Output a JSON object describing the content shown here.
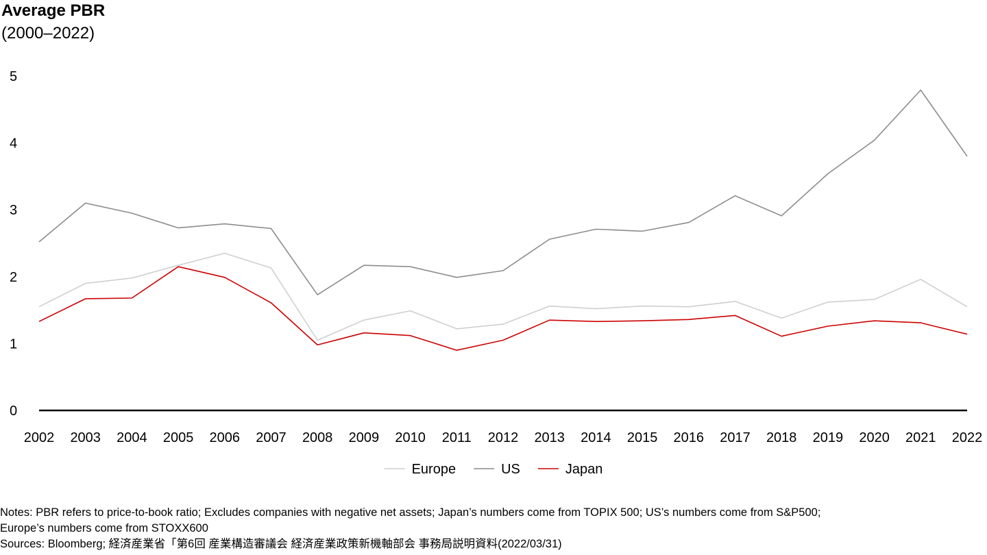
{
  "chart_data": {
    "type": "line",
    "title": "Average PBR",
    "subtitle": "(2000–2022)",
    "xlabel": "",
    "ylabel": "",
    "ylim": [
      0,
      5
    ],
    "yticks": [
      "0",
      "1",
      "2",
      "3",
      "4",
      "5"
    ],
    "grid": false,
    "legend_position": "bottom",
    "categories": [
      "2002",
      "2003",
      "2004",
      "2005",
      "2006",
      "2007",
      "2008",
      "2009",
      "2010",
      "2011",
      "2012",
      "2013",
      "2014",
      "2015",
      "2016",
      "2017",
      "2018",
      "2019",
      "2020",
      "2021",
      "2022"
    ],
    "series": [
      {
        "name": "Europe",
        "color": "#cfcfcf",
        "values": [
          1.55,
          1.9,
          1.98,
          2.17,
          2.35,
          2.13,
          1.05,
          1.35,
          1.49,
          1.22,
          1.29,
          1.56,
          1.52,
          1.56,
          1.55,
          1.63,
          1.38,
          1.62,
          1.66,
          1.96,
          1.55
        ]
      },
      {
        "name": "US",
        "color": "#8c8c8c",
        "values": [
          2.52,
          3.1,
          2.95,
          2.73,
          2.79,
          2.72,
          1.73,
          2.17,
          2.15,
          1.99,
          2.09,
          2.56,
          2.71,
          2.68,
          2.81,
          3.21,
          2.91,
          3.54,
          4.04,
          4.79,
          3.8
        ]
      },
      {
        "name": "Japan",
        "color": "#cc0000",
        "values": [
          1.33,
          1.67,
          1.68,
          2.15,
          1.99,
          1.61,
          0.98,
          1.16,
          1.12,
          0.9,
          1.05,
          1.35,
          1.33,
          1.34,
          1.36,
          1.42,
          1.11,
          1.26,
          1.34,
          1.31,
          1.14
        ]
      }
    ]
  },
  "notes": {
    "line1": "Notes: PBR refers to price-to-book ratio; Excludes companies with negative net assets; Japan’s numbers come from TOPIX 500; US’s numbers come from S&P500;",
    "line2": "Europe’s numbers come from STOXX600",
    "sources": "Sources: Bloomberg; 経済産業省「第6回 産業構造審議会 経済産業政策新機軸部会 事務局説明資料(2022/03/31)"
  }
}
